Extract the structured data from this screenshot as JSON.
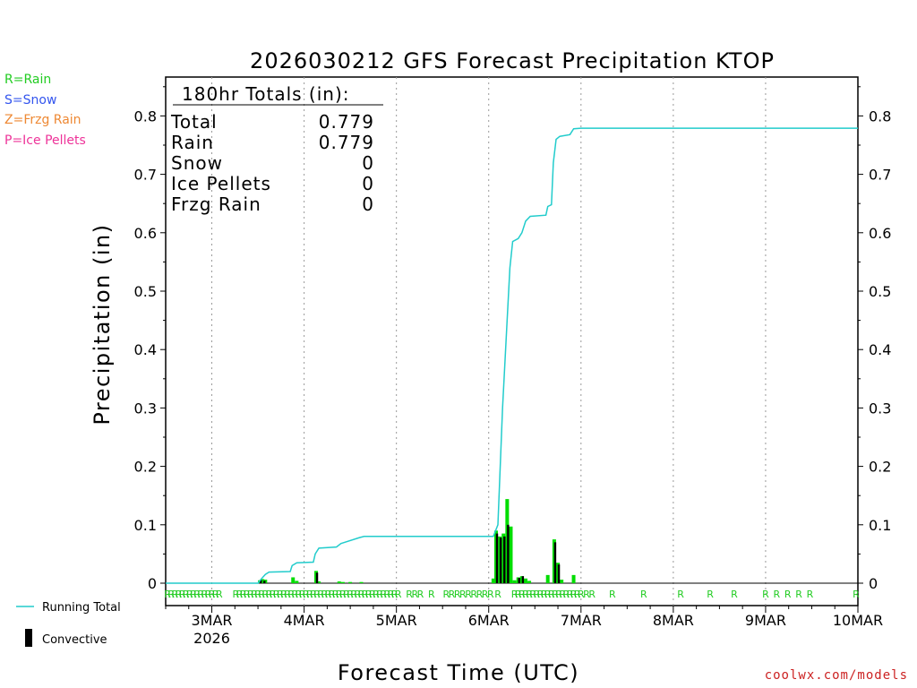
{
  "chart_data": {
    "type": "bar+line",
    "title": "2026030212 GFS Forecast Precipitation KTOP",
    "xlabel": "Forecast Time (UTC)",
    "ylabel": "Precipitation (in)",
    "ylim": [
      0,
      0.86
    ],
    "y_ticks": [
      0,
      0.1,
      0.2,
      0.3,
      0.4,
      0.5,
      0.6,
      0.7,
      0.8
    ],
    "x_range_days": [
      0,
      7.5
    ],
    "x_ticks": [
      {
        "day": 0.5,
        "label": "3MAR",
        "sublabel": "2026"
      },
      {
        "day": 1.5,
        "label": "4MAR",
        "sublabel": ""
      },
      {
        "day": 2.5,
        "label": "5MAR",
        "sublabel": ""
      },
      {
        "day": 3.5,
        "label": "6MAR",
        "sublabel": ""
      },
      {
        "day": 4.5,
        "label": "7MAR",
        "sublabel": ""
      },
      {
        "day": 5.5,
        "label": "8MAR",
        "sublabel": ""
      },
      {
        "day": 6.5,
        "label": "9MAR",
        "sublabel": ""
      },
      {
        "day": 7.5,
        "label": "10MAR",
        "sublabel": ""
      }
    ],
    "totals_box": {
      "header": "180hr Totals (in):",
      "rows": [
        {
          "label": "Total",
          "value": "0.779"
        },
        {
          "label": "Rain",
          "value": "0.779"
        },
        {
          "label": "Snow",
          "value": "0"
        },
        {
          "label": "Ice Pellets",
          "value": "0"
        },
        {
          "label": "Frzg Rain",
          "value": "0"
        }
      ]
    },
    "running_total": {
      "name": "Running Total",
      "color": "#22cccc",
      "points": [
        [
          0,
          0
        ],
        [
          1.0,
          0
        ],
        [
          1.04,
          0.008
        ],
        [
          1.08,
          0.015
        ],
        [
          1.12,
          0.019
        ],
        [
          1.35,
          0.02
        ],
        [
          1.37,
          0.03
        ],
        [
          1.42,
          0.035
        ],
        [
          1.6,
          0.036
        ],
        [
          1.62,
          0.05
        ],
        [
          1.66,
          0.06
        ],
        [
          1.85,
          0.062
        ],
        [
          1.9,
          0.068
        ],
        [
          2.1,
          0.078
        ],
        [
          2.15,
          0.08
        ],
        [
          3.5,
          0.08
        ],
        [
          3.55,
          0.08
        ],
        [
          3.6,
          0.1
        ],
        [
          3.65,
          0.3
        ],
        [
          3.7,
          0.45
        ],
        [
          3.73,
          0.54
        ],
        [
          3.76,
          0.585
        ],
        [
          3.82,
          0.59
        ],
        [
          3.86,
          0.6
        ],
        [
          3.9,
          0.62
        ],
        [
          3.95,
          0.628
        ],
        [
          4.12,
          0.63
        ],
        [
          4.14,
          0.645
        ],
        [
          4.18,
          0.648
        ],
        [
          4.2,
          0.72
        ],
        [
          4.23,
          0.76
        ],
        [
          4.27,
          0.765
        ],
        [
          4.38,
          0.768
        ],
        [
          4.42,
          0.778
        ],
        [
          4.5,
          0.779
        ],
        [
          7.5,
          0.779
        ]
      ]
    },
    "precip_bars": [
      {
        "day": 1.02,
        "v": 0.005
      },
      {
        "day": 1.05,
        "v": 0.007
      },
      {
        "day": 1.08,
        "v": 0.006
      },
      {
        "day": 1.38,
        "v": 0.01
      },
      {
        "day": 1.42,
        "v": 0.004
      },
      {
        "day": 1.63,
        "v": 0.021
      },
      {
        "day": 1.66,
        "v": 0.003
      },
      {
        "day": 1.88,
        "v": 0.003
      },
      {
        "day": 1.92,
        "v": 0.002
      },
      {
        "day": 2.0,
        "v": 0.002
      },
      {
        "day": 2.12,
        "v": 0.002
      },
      {
        "day": 3.55,
        "v": 0.008
      },
      {
        "day": 3.58,
        "v": 0.09
      },
      {
        "day": 3.62,
        "v": 0.08
      },
      {
        "day": 3.66,
        "v": 0.085
      },
      {
        "day": 3.7,
        "v": 0.144
      },
      {
        "day": 3.74,
        "v": 0.097
      },
      {
        "day": 3.78,
        "v": 0.005
      },
      {
        "day": 3.82,
        "v": 0.01
      },
      {
        "day": 3.86,
        "v": 0.012
      },
      {
        "day": 3.9,
        "v": 0.008
      },
      {
        "day": 3.94,
        "v": 0.004
      },
      {
        "day": 4.14,
        "v": 0.014
      },
      {
        "day": 4.21,
        "v": 0.075
      },
      {
        "day": 4.25,
        "v": 0.035
      },
      {
        "day": 4.29,
        "v": 0.006
      },
      {
        "day": 4.42,
        "v": 0.014
      }
    ],
    "convective_bars": [
      {
        "day": 1.03,
        "v": 0.006
      },
      {
        "day": 1.07,
        "v": 0.004
      },
      {
        "day": 1.64,
        "v": 0.018
      },
      {
        "day": 3.59,
        "v": 0.085
      },
      {
        "day": 3.63,
        "v": 0.078
      },
      {
        "day": 3.67,
        "v": 0.08
      },
      {
        "day": 3.71,
        "v": 0.1
      },
      {
        "day": 3.83,
        "v": 0.009
      },
      {
        "day": 3.87,
        "v": 0.012
      },
      {
        "day": 4.22,
        "v": 0.07
      },
      {
        "day": 4.26,
        "v": 0.032
      }
    ],
    "ptype_markers": {
      "symbol": "R",
      "color": "#22cc22",
      "days": [
        0.02,
        0.06,
        0.1,
        0.14,
        0.18,
        0.22,
        0.26,
        0.3,
        0.34,
        0.38,
        0.42,
        0.46,
        0.5,
        0.54,
        0.58,
        0.76,
        0.8,
        0.84,
        0.88,
        0.92,
        0.96,
        1.0,
        1.04,
        1.08,
        1.12,
        1.16,
        1.2,
        1.24,
        1.28,
        1.32,
        1.36,
        1.4,
        1.44,
        1.48,
        1.52,
        1.56,
        1.6,
        1.64,
        1.68,
        1.72,
        1.76,
        1.8,
        1.84,
        1.88,
        1.92,
        1.96,
        2.0,
        2.04,
        2.08,
        2.12,
        2.16,
        2.2,
        2.24,
        2.28,
        2.32,
        2.36,
        2.4,
        2.44,
        2.48,
        2.52,
        2.64,
        2.7,
        2.76,
        2.88,
        3.04,
        3.1,
        3.16,
        3.22,
        3.28,
        3.34,
        3.4,
        3.46,
        3.52,
        3.6,
        3.78,
        3.82,
        3.86,
        3.9,
        3.94,
        3.98,
        4.02,
        4.06,
        4.1,
        4.14,
        4.18,
        4.22,
        4.26,
        4.3,
        4.34,
        4.38,
        4.42,
        4.46,
        4.5,
        4.56,
        4.62,
        4.84,
        5.18,
        5.58,
        5.9,
        6.16,
        6.5,
        6.62,
        6.74,
        6.86,
        6.98,
        7.48
      ]
    },
    "legend": {
      "ptypes": [
        {
          "label": "R=Rain",
          "color": "#22cc22"
        },
        {
          "label": "S=Snow",
          "color": "#3355ee"
        },
        {
          "label": "Z=Frzg Rain",
          "color": "#ee8833"
        },
        {
          "label": "P=Ice Pellets",
          "color": "#ee3399"
        }
      ],
      "running_total_label": "Running Total",
      "convective_label": "Convective"
    },
    "colors": {
      "precip_bar": "#00dd00",
      "convective_bar": "#000000",
      "running_total": "#22cccc",
      "grid": "#999999"
    }
  },
  "credit": "coolwx.com/models"
}
